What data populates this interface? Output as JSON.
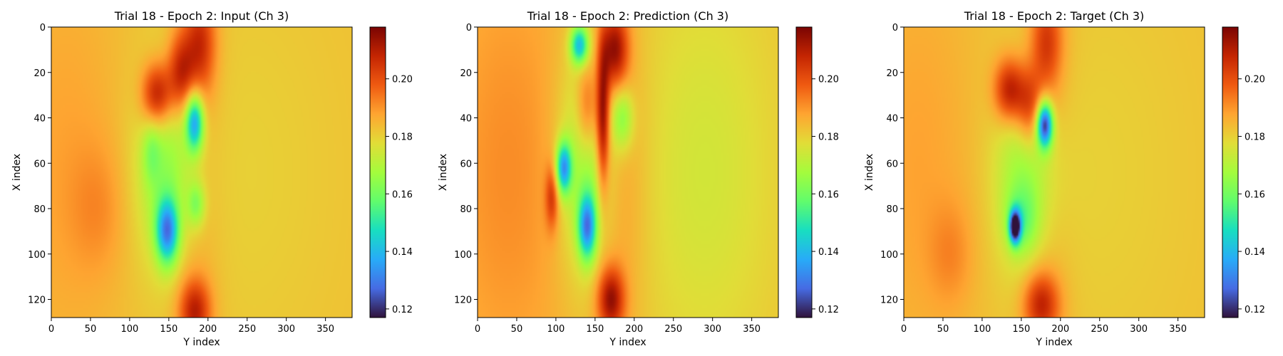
{
  "chart_data": [
    {
      "type": "heatmap",
      "title": "Trial 18 - Epoch 2: Input (Ch 3)",
      "xlabel": "Y index",
      "ylabel": "X index",
      "xlim": [
        0,
        384
      ],
      "ylim": [
        128,
        0
      ],
      "xticks": [
        0,
        50,
        100,
        150,
        200,
        250,
        300,
        350
      ],
      "yticks": [
        0,
        20,
        40,
        60,
        80,
        100,
        120
      ],
      "background": 0.183,
      "blobs": [
        {
          "x": 20,
          "y": 60,
          "sx": 50,
          "sy": 60,
          "v": 0.005
        },
        {
          "x": 60,
          "y": 80,
          "sx": 25,
          "sy": 20,
          "v": 0.006
        },
        {
          "x": 250,
          "y": 64,
          "sx": 90,
          "sy": 70,
          "v": -0.003
        },
        {
          "x": 185,
          "y": 64,
          "sx": 22,
          "sy": 70,
          "v": 0.007
        },
        {
          "x": 190,
          "y": 8,
          "sx": 14,
          "sy": 16,
          "v": 0.022
        },
        {
          "x": 183,
          "y": 125,
          "sx": 14,
          "sy": 10,
          "v": 0.025
        },
        {
          "x": 135,
          "y": 30,
          "sx": 14,
          "sy": 10,
          "v": 0.032
        },
        {
          "x": 165,
          "y": 20,
          "sx": 12,
          "sy": 12,
          "v": 0.025
        },
        {
          "x": 150,
          "y": 62,
          "sx": 30,
          "sy": 30,
          "v": -0.018
        },
        {
          "x": 183,
          "y": 42,
          "sx": 8,
          "sy": 9,
          "v": -0.045
        },
        {
          "x": 148,
          "y": 90,
          "sx": 10,
          "sy": 10,
          "v": -0.045
        },
        {
          "x": 185,
          "y": 78,
          "sx": 8,
          "sy": 7,
          "v": -0.018
        },
        {
          "x": 128,
          "y": 55,
          "sx": 8,
          "sy": 10,
          "v": -0.01
        }
      ]
    },
    {
      "type": "heatmap",
      "title": "Trial 18 - Epoch 2: Prediction (Ch 3)",
      "xlabel": "Y index",
      "ylabel": "X index",
      "xlim": [
        0,
        384
      ],
      "ylim": [
        128,
        0
      ],
      "xticks": [
        0,
        50,
        100,
        150,
        200,
        250,
        300,
        350
      ],
      "yticks": [
        0,
        20,
        40,
        60,
        80,
        100,
        120
      ],
      "background": 0.183,
      "blobs": [
        {
          "x": 40,
          "y": 64,
          "sx": 60,
          "sy": 70,
          "v": 0.008
        },
        {
          "x": 290,
          "y": 64,
          "sx": 70,
          "sy": 70,
          "v": -0.008
        },
        {
          "x": 180,
          "y": 64,
          "sx": 25,
          "sy": 60,
          "v": 0.008
        },
        {
          "x": 160,
          "y": 40,
          "sx": 6,
          "sy": 22,
          "v": 0.035
        },
        {
          "x": 175,
          "y": 10,
          "sx": 12,
          "sy": 12,
          "v": 0.03
        },
        {
          "x": 170,
          "y": 120,
          "sx": 12,
          "sy": 10,
          "v": 0.03
        },
        {
          "x": 140,
          "y": 35,
          "sx": 10,
          "sy": 14,
          "v": 0.02
        },
        {
          "x": 95,
          "y": 75,
          "sx": 6,
          "sy": 10,
          "v": 0.02
        },
        {
          "x": 140,
          "y": 60,
          "sx": 25,
          "sy": 35,
          "v": -0.02
        },
        {
          "x": 130,
          "y": 8,
          "sx": 8,
          "sy": 6,
          "v": -0.04
        },
        {
          "x": 110,
          "y": 62,
          "sx": 7,
          "sy": 8,
          "v": -0.045
        },
        {
          "x": 140,
          "y": 88,
          "sx": 8,
          "sy": 10,
          "v": -0.045
        },
        {
          "x": 185,
          "y": 40,
          "sx": 10,
          "sy": 10,
          "v": -0.02
        }
      ]
    },
    {
      "type": "heatmap",
      "title": "Trial 18 - Epoch 2: Target (Ch 3)",
      "xlabel": "Y index",
      "ylabel": "X index",
      "xlim": [
        0,
        384
      ],
      "ylim": [
        128,
        0
      ],
      "xticks": [
        0,
        50,
        100,
        150,
        200,
        250,
        300,
        350
      ],
      "yticks": [
        0,
        20,
        40,
        60,
        80,
        100,
        120
      ],
      "background": 0.183,
      "blobs": [
        {
          "x": 20,
          "y": 60,
          "sx": 50,
          "sy": 60,
          "v": 0.005
        },
        {
          "x": 60,
          "y": 100,
          "sx": 20,
          "sy": 16,
          "v": 0.007
        },
        {
          "x": 250,
          "y": 64,
          "sx": 90,
          "sy": 70,
          "v": -0.003
        },
        {
          "x": 185,
          "y": 64,
          "sx": 22,
          "sy": 70,
          "v": 0.007
        },
        {
          "x": 182,
          "y": 8,
          "sx": 14,
          "sy": 16,
          "v": 0.02
        },
        {
          "x": 175,
          "y": 122,
          "sx": 16,
          "sy": 10,
          "v": 0.025
        },
        {
          "x": 135,
          "y": 28,
          "sx": 14,
          "sy": 10,
          "v": 0.03
        },
        {
          "x": 160,
          "y": 35,
          "sx": 12,
          "sy": 12,
          "v": 0.022
        },
        {
          "x": 160,
          "y": 65,
          "sx": 30,
          "sy": 30,
          "v": -0.018
        },
        {
          "x": 180,
          "y": 43,
          "sx": 7,
          "sy": 7,
          "v": -0.06
        },
        {
          "x": 142,
          "y": 88,
          "sx": 5,
          "sy": 5,
          "v": -0.065
        },
        {
          "x": 150,
          "y": 85,
          "sx": 14,
          "sy": 10,
          "v": -0.015
        }
      ]
    }
  ],
  "colorbar": {
    "ticks": [
      0.12,
      0.14,
      0.16,
      0.18,
      0.2
    ],
    "tick_labels": [
      "0.12",
      "0.14",
      "0.16",
      "0.18",
      "0.20"
    ],
    "vmin": 0.117,
    "vmax": 0.218,
    "colormap": "turbo"
  }
}
